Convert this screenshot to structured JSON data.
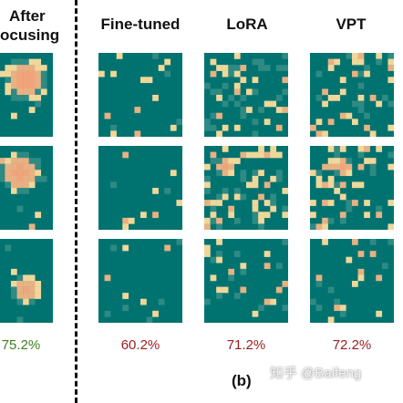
{
  "colors": {
    "background": "#007370",
    "tile_light": "#f0d79a",
    "tile_mid": "#e8b183",
    "tile_hot": "#f0a47a",
    "tile_dim": "#2f8a84",
    "pct_red": "#9b1c1c",
    "pct_green": "#3f7d20"
  },
  "left_column": {
    "header_line1": "After",
    "header_line2": "ocusing",
    "accuracy": "75.2%"
  },
  "columns": [
    {
      "header": "Fine-tuned",
      "accuracy": "60.2%"
    },
    {
      "header": "LoRA",
      "accuracy": "71.2%"
    },
    {
      "header": "VPT",
      "accuracy": "72.2%"
    }
  ],
  "sub_label": "(b)",
  "watermark": "知乎 @Baifeng"
}
